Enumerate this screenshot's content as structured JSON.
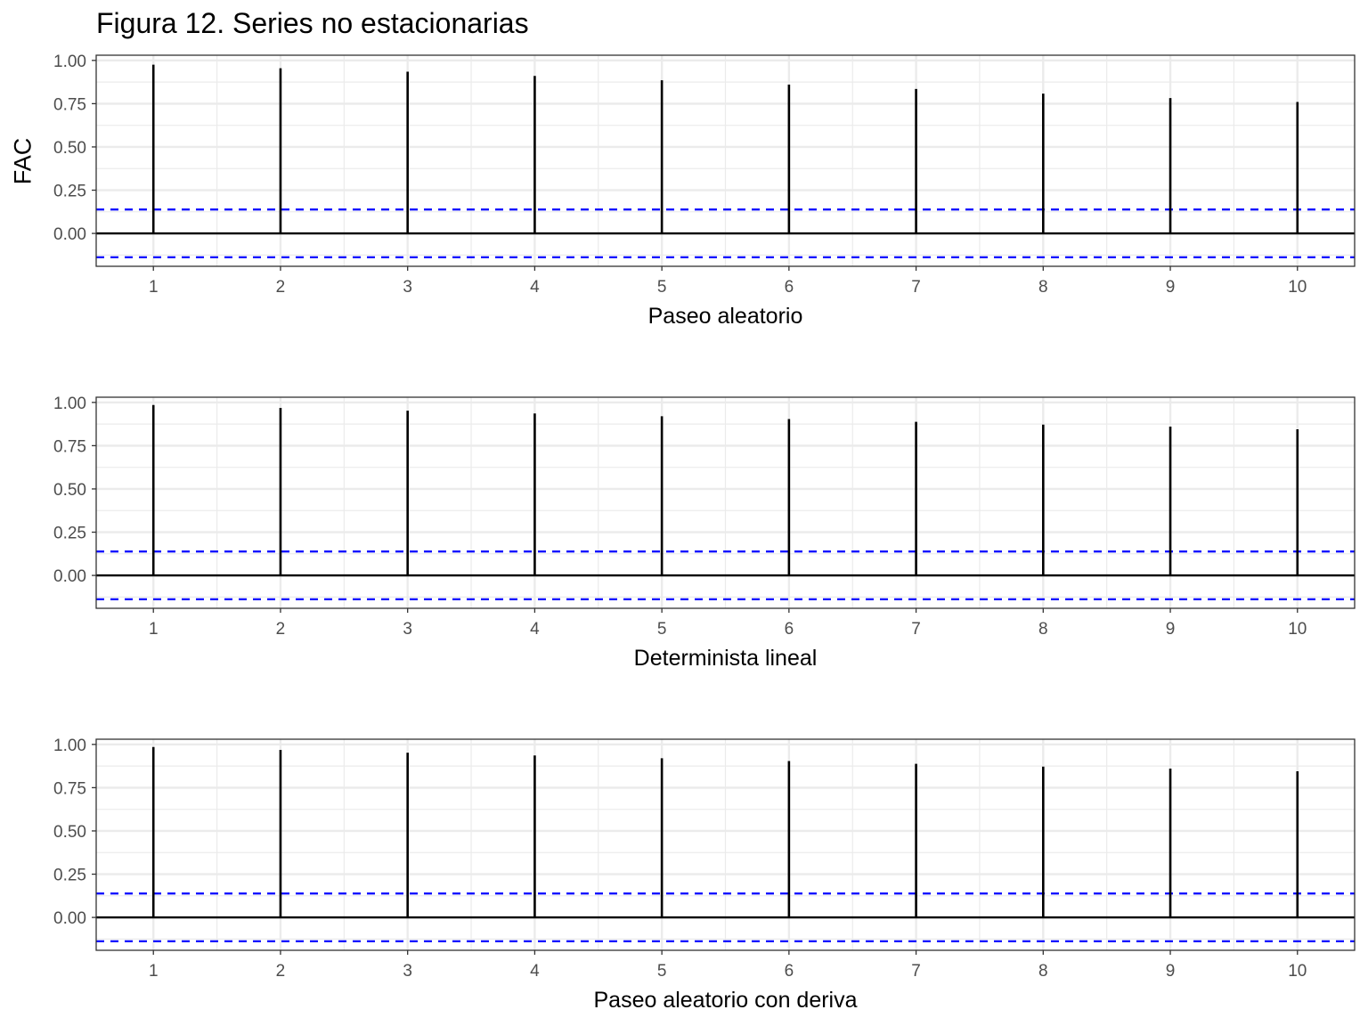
{
  "title": "Figura 12. Series no estacionarias",
  "ylabel": "FAC",
  "colors": {
    "spike": "#000000",
    "ci_line": "#0000ff",
    "grid": "#ebebeb",
    "panel_border": "#333333",
    "tick_label": "#4d4d4d"
  },
  "chart_data": [
    {
      "type": "bar",
      "xlabel": "Paseo aleatorio",
      "ylabel": "FAC",
      "x": [
        1,
        2,
        3,
        4,
        5,
        6,
        7,
        8,
        9,
        10
      ],
      "values": [
        0.975,
        0.955,
        0.935,
        0.91,
        0.885,
        0.86,
        0.835,
        0.808,
        0.782,
        0.76
      ],
      "ci": [
        0.138,
        -0.138
      ],
      "ylim": [
        -0.19,
        1.03
      ],
      "xlim": [
        0.55,
        10.45
      ],
      "yticks": [
        "0.00",
        "0.25",
        "0.50",
        "0.75",
        "1.00"
      ],
      "xticks": [
        "1",
        "2",
        "3",
        "4",
        "5",
        "6",
        "7",
        "8",
        "9",
        "10"
      ]
    },
    {
      "type": "bar",
      "xlabel": "Determinista lineal",
      "x": [
        1,
        2,
        3,
        4,
        5,
        6,
        7,
        8,
        9,
        10
      ],
      "values": [
        0.985,
        0.968,
        0.952,
        0.936,
        0.92,
        0.904,
        0.888,
        0.872,
        0.86,
        0.845
      ],
      "ci": [
        0.138,
        -0.138
      ],
      "ylim": [
        -0.19,
        1.03
      ],
      "xlim": [
        0.55,
        10.45
      ],
      "yticks": [
        "0.00",
        "0.25",
        "0.50",
        "0.75",
        "1.00"
      ],
      "xticks": [
        "1",
        "2",
        "3",
        "4",
        "5",
        "6",
        "7",
        "8",
        "9",
        "10"
      ]
    },
    {
      "type": "bar",
      "xlabel": "Paseo aleatorio con deriva",
      "x": [
        1,
        2,
        3,
        4,
        5,
        6,
        7,
        8,
        9,
        10
      ],
      "values": [
        0.985,
        0.968,
        0.952,
        0.936,
        0.92,
        0.904,
        0.888,
        0.872,
        0.86,
        0.845
      ],
      "ci": [
        0.138,
        -0.138
      ],
      "ylim": [
        -0.19,
        1.03
      ],
      "xlim": [
        0.55,
        10.45
      ],
      "yticks": [
        "0.00",
        "0.25",
        "0.50",
        "0.75",
        "1.00"
      ],
      "xticks": [
        "1",
        "2",
        "3",
        "4",
        "5",
        "6",
        "7",
        "8",
        "9",
        "10"
      ]
    }
  ]
}
